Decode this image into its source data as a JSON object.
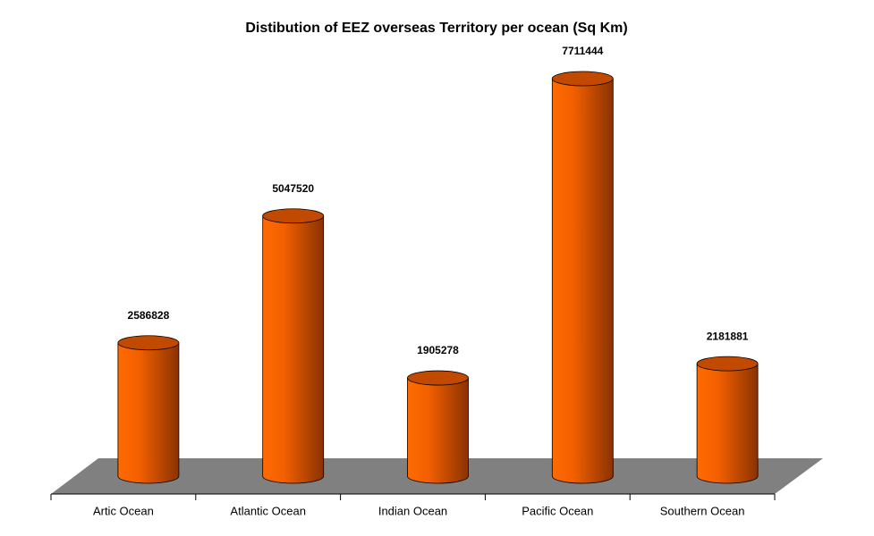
{
  "chart_data": {
    "type": "bar",
    "title": "Distibution of EEZ overseas Territory per ocean (Sq Km)",
    "categories": [
      "Artic Ocean",
      "Atlantic Ocean",
      "Indian Ocean",
      "Pacific Ocean",
      "Southern Ocean"
    ],
    "values": [
      2586828,
      5047520,
      1905278,
      7711444,
      2181881
    ],
    "color": "#ff6600"
  }
}
